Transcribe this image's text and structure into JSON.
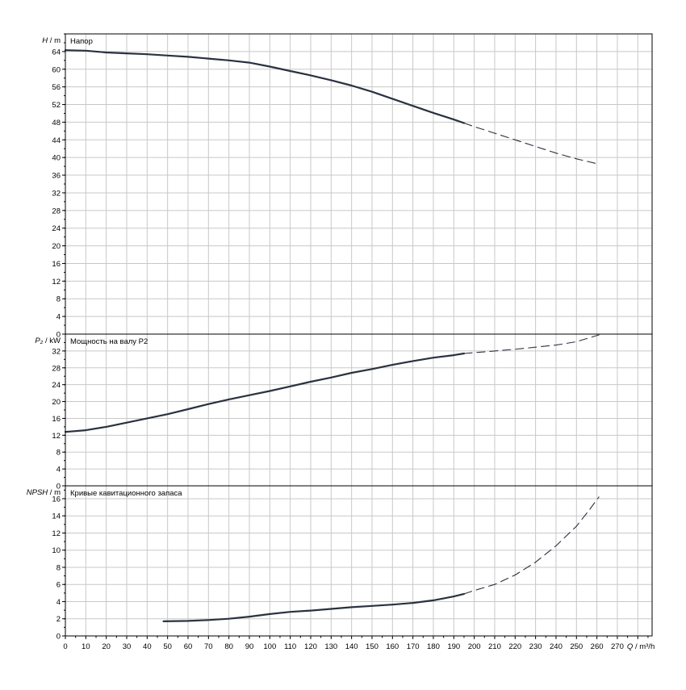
{
  "colors": {
    "curve": "#2a3140",
    "grid": "#c8c8c8",
    "frame": "#000000"
  },
  "chart_data": [
    {
      "type": "line",
      "panel": "head",
      "title": "Напор",
      "ylabel_symbol": "H",
      "ylabel_unit": "/ m",
      "ylim": [
        0,
        68
      ],
      "yticks": [
        0,
        4,
        8,
        12,
        16,
        20,
        24,
        28,
        32,
        36,
        40,
        44,
        48,
        52,
        56,
        60,
        64
      ],
      "series": [
        {
          "style": "solid",
          "x": [
            0,
            10,
            20,
            30,
            40,
            50,
            60,
            70,
            80,
            90,
            100,
            110,
            120,
            130,
            140,
            150,
            160,
            170,
            180,
            190,
            195
          ],
          "y": [
            64.3,
            64.2,
            63.8,
            63.6,
            63.4,
            63.1,
            62.8,
            62.4,
            62.0,
            61.5,
            60.6,
            59.6,
            58.6,
            57.5,
            56.3,
            54.9,
            53.3,
            51.7,
            50.1,
            48.6,
            47.8
          ]
        },
        {
          "style": "dashed",
          "x": [
            195,
            200,
            210,
            220,
            230,
            240,
            250,
            260
          ],
          "y": [
            47.8,
            47.0,
            45.5,
            44.0,
            42.5,
            41.0,
            39.7,
            38.6
          ]
        }
      ]
    },
    {
      "type": "line",
      "panel": "power",
      "title": "Мощность на валу P2",
      "ylabel_symbol": "P₂",
      "ylabel_unit": "/ kW",
      "ylim": [
        0,
        36
      ],
      "yticks": [
        0,
        4,
        8,
        12,
        16,
        20,
        24,
        28,
        32
      ],
      "series": [
        {
          "style": "solid",
          "x": [
            0,
            10,
            20,
            30,
            40,
            50,
            60,
            70,
            80,
            90,
            100,
            110,
            120,
            130,
            140,
            150,
            160,
            170,
            180,
            190,
            195
          ],
          "y": [
            12.8,
            13.2,
            14.0,
            15.0,
            16.0,
            17.0,
            18.2,
            19.4,
            20.5,
            21.5,
            22.5,
            23.6,
            24.7,
            25.7,
            26.8,
            27.7,
            28.7,
            29.6,
            30.4,
            31.0,
            31.4
          ]
        },
        {
          "style": "dashed",
          "x": [
            195,
            200,
            210,
            220,
            230,
            240,
            250,
            261
          ],
          "y": [
            31.4,
            31.6,
            32.0,
            32.4,
            32.9,
            33.4,
            34.2,
            35.8
          ]
        }
      ]
    },
    {
      "type": "line",
      "panel": "npsh",
      "title": "Кривые кавитационного запаса",
      "ylabel_symbol": "NPSH",
      "ylabel_unit": "/ m",
      "ylim": [
        0,
        17.5
      ],
      "yticks": [
        0,
        2,
        4,
        6,
        8,
        10,
        12,
        14,
        16
      ],
      "series": [
        {
          "style": "solid",
          "x": [
            48,
            60,
            70,
            80,
            90,
            100,
            110,
            120,
            130,
            140,
            150,
            160,
            170,
            180,
            190,
            195
          ],
          "y": [
            1.7,
            1.75,
            1.85,
            2.0,
            2.25,
            2.55,
            2.8,
            2.95,
            3.15,
            3.35,
            3.5,
            3.65,
            3.85,
            4.15,
            4.6,
            4.9
          ]
        },
        {
          "style": "dashed",
          "x": [
            195,
            200,
            210,
            220,
            230,
            240,
            250,
            256,
            261
          ],
          "y": [
            4.9,
            5.3,
            6.0,
            7.1,
            8.6,
            10.5,
            12.8,
            14.6,
            16.2
          ]
        }
      ]
    }
  ],
  "x_axis": {
    "label": "Q / m³/h",
    "xlim": [
      0,
      287
    ],
    "ticks": [
      0,
      10,
      20,
      30,
      40,
      50,
      60,
      70,
      80,
      90,
      100,
      110,
      120,
      130,
      140,
      150,
      160,
      170,
      180,
      190,
      200,
      210,
      220,
      230,
      240,
      250,
      260,
      270
    ]
  }
}
